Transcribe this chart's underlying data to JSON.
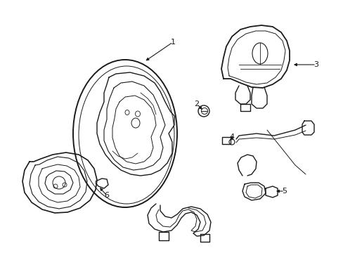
{
  "background_color": "#ffffff",
  "line_color": "#1a1a1a",
  "line_width": 1.0,
  "fig_width": 4.89,
  "fig_height": 3.6
}
